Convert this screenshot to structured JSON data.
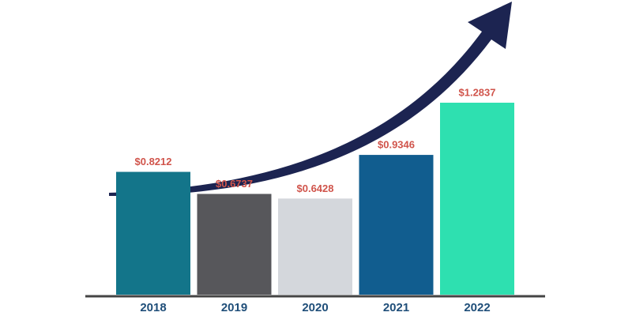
{
  "chart_data": {
    "type": "bar",
    "categories": [
      "2018",
      "2019",
      "2020",
      "2021",
      "2022"
    ],
    "values": [
      0.8212,
      0.6737,
      0.6428,
      0.9346,
      1.2837
    ],
    "value_labels": [
      "$0.8212",
      "$0.6737",
      "$0.6428",
      "$0.9346",
      "$1.2837"
    ],
    "colors": [
      "#13758a",
      "#57575b",
      "#d4d7dc",
      "#115d8f",
      "#2ee0b0"
    ]
  }
}
